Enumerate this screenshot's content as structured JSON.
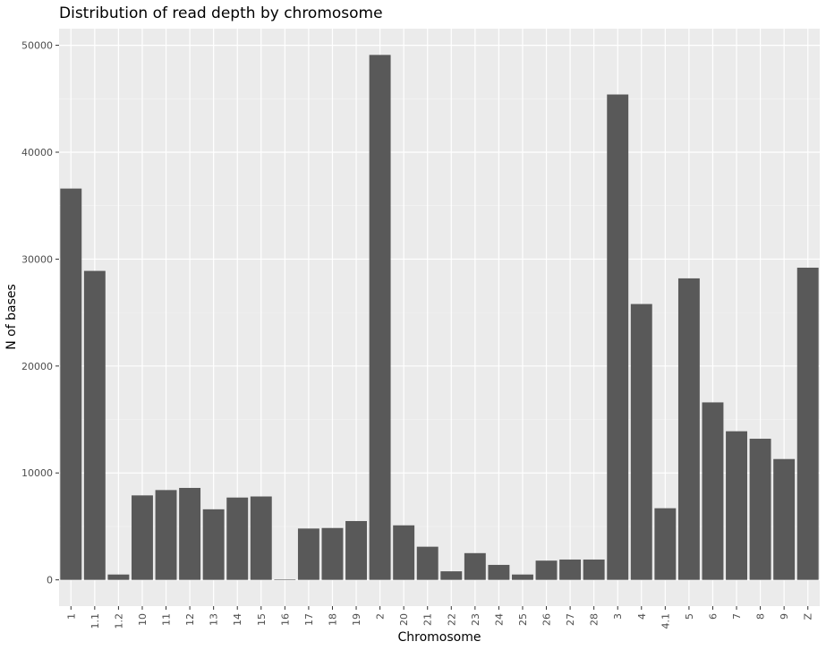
{
  "chart_data": {
    "type": "bar",
    "title": "Distribution of read depth by chromosome",
    "xlabel": "Chromosome",
    "ylabel": "N of bases",
    "categories": [
      "1",
      "1.1",
      "1.2",
      "10",
      "11",
      "12",
      "13",
      "14",
      "15",
      "16",
      "17",
      "18",
      "19",
      "2",
      "20",
      "21",
      "22",
      "23",
      "24",
      "25",
      "26",
      "27",
      "28",
      "3",
      "4",
      "4.1",
      "5",
      "6",
      "7",
      "8",
      "9",
      "Z"
    ],
    "values": [
      36600,
      28900,
      500,
      7900,
      8400,
      8600,
      6600,
      7700,
      7800,
      50,
      4800,
      4850,
      5500,
      49100,
      5100,
      3100,
      800,
      2500,
      1400,
      500,
      1800,
      1900,
      1900,
      45400,
      25800,
      6700,
      28200,
      16600,
      13900,
      13200,
      11300,
      29200
    ],
    "yticks": [
      0,
      10000,
      20000,
      30000,
      40000,
      50000
    ],
    "ylim": [
      -2457,
      51557
    ],
    "grid": true,
    "legend": "none",
    "colors": {
      "bar": "#595959",
      "panel": "#ebebeb",
      "grid_major": "#ffffff",
      "grid_minor": "#f5f5f5"
    }
  }
}
